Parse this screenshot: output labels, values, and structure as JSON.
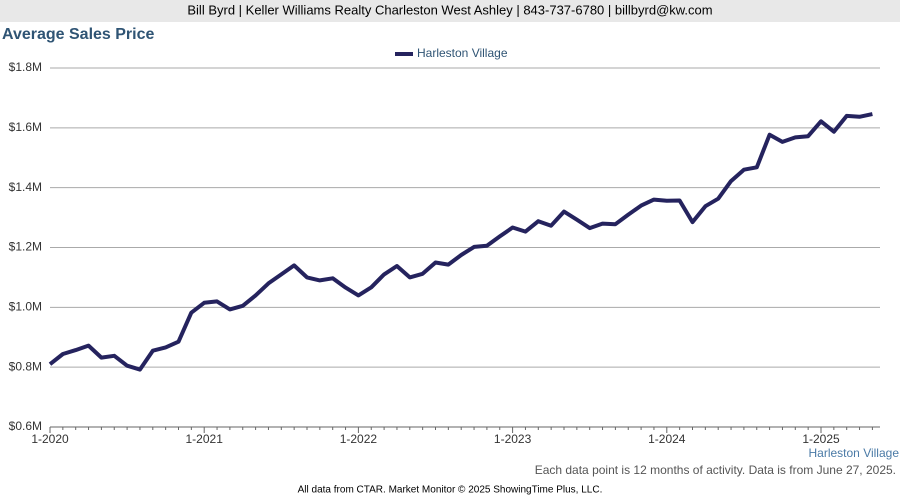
{
  "header": "Bill Byrd | Keller Williams Realty Charleston West Ashley | 843-737-6780 | billbyrd@kw.com",
  "chart_data": {
    "type": "line",
    "title": "Average Sales Price",
    "categories": [
      "1-2020",
      null,
      null,
      null,
      null,
      null,
      null,
      null,
      null,
      null,
      null,
      null,
      "1-2021",
      null,
      null,
      null,
      null,
      null,
      null,
      null,
      null,
      null,
      null,
      null,
      "1-2022",
      null,
      null,
      null,
      null,
      null,
      null,
      null,
      null,
      null,
      null,
      null,
      "1-2023",
      null,
      null,
      null,
      null,
      null,
      null,
      null,
      null,
      null,
      null,
      null,
      "1-2024",
      null,
      null,
      null,
      null,
      null,
      null,
      null,
      null,
      null,
      null,
      null,
      "1-2025",
      null,
      null,
      null,
      null
    ],
    "series": [
      {
        "name": "Harleston Village",
        "color": "#25235e",
        "values": [
          810000,
          844000,
          857000,
          872000,
          832000,
          838000,
          805000,
          792000,
          855000,
          866000,
          885000,
          982000,
          1015000,
          1020000,
          993000,
          1005000,
          1040000,
          1080000,
          1110000,
          1140000,
          1100000,
          1090000,
          1097000,
          1066000,
          1040000,
          1067000,
          1110000,
          1138000,
          1100000,
          1112000,
          1150000,
          1143000,
          1175000,
          1202000,
          1206000,
          1237000,
          1267000,
          1253000,
          1288000,
          1273000,
          1320000,
          1293000,
          1265000,
          1280000,
          1278000,
          1310000,
          1340000,
          1360000,
          1356000,
          1357000,
          1285000,
          1338000,
          1363000,
          1422000,
          1460000,
          1468000,
          1577000,
          1553000,
          1568000,
          1572000,
          1622000,
          1587000,
          1640000,
          1637000,
          1646000
        ]
      }
    ],
    "ylim": [
      600000,
      1800000
    ],
    "yticks": [
      {
        "value": 600000,
        "label": "$0.6M"
      },
      {
        "value": 800000,
        "label": "$0.8M"
      },
      {
        "value": 1000000,
        "label": "$1.0M"
      },
      {
        "value": 1200000,
        "label": "$1.2M"
      },
      {
        "value": 1400000,
        "label": "$1.4M"
      },
      {
        "value": 1600000,
        "label": "$1.6M"
      },
      {
        "value": 1800000,
        "label": "$1.8M"
      }
    ],
    "grid": true,
    "legend": "top",
    "area_label": "Harleston Village",
    "note": "Each data point is 12 months of activity. Data is from June 27, 2025."
  },
  "footer": "All data from CTAR. Market Monitor © 2025 ShowingTime Plus, LLC."
}
